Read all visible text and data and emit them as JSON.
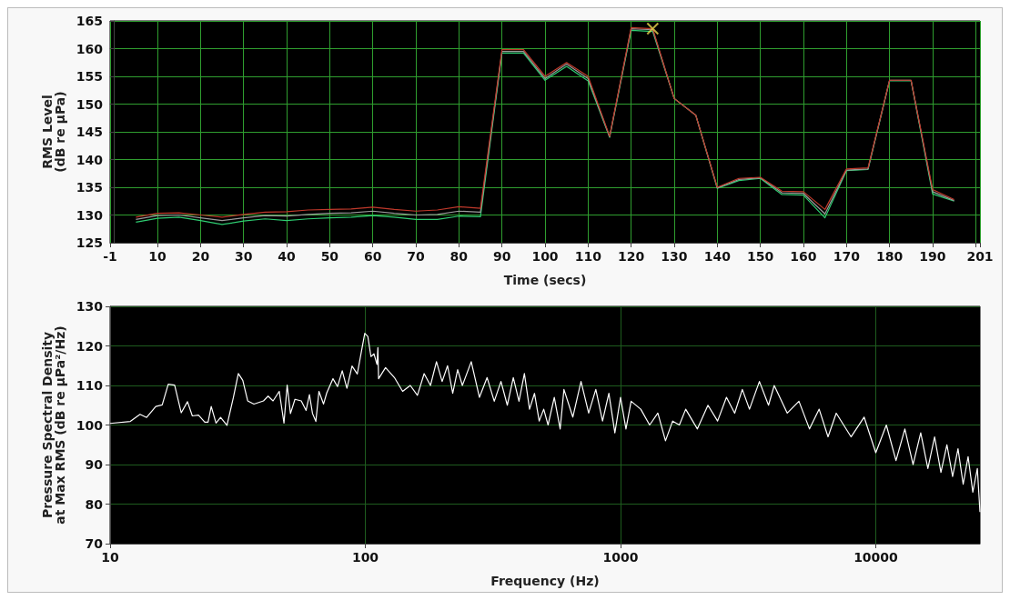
{
  "chart_data": [
    {
      "type": "line",
      "xlabel": "Time (secs)",
      "ylabel": "RMS Level\n(dB re µPa)",
      "x": [
        5,
        10,
        15,
        20,
        25,
        30,
        35,
        40,
        45,
        50,
        55,
        60,
        65,
        70,
        75,
        80,
        85,
        90,
        95,
        100,
        105,
        110,
        115,
        120,
        125,
        130,
        135,
        140,
        145,
        150,
        155,
        160,
        165,
        170,
        175,
        180,
        185,
        190,
        195
      ],
      "xlim": [
        -1,
        201
      ],
      "xticks": [
        -1,
        10,
        20,
        30,
        40,
        50,
        60,
        70,
        80,
        90,
        100,
        110,
        120,
        130,
        140,
        150,
        160,
        170,
        180,
        190,
        {
          "value": 200,
          "label": null
        },
        201
      ],
      "ylim": [
        125,
        165
      ],
      "yticks": [
        125,
        130,
        135,
        140,
        145,
        150,
        155,
        160,
        165
      ],
      "grid": true,
      "marker": "none",
      "series": [
        {
          "color": "#c0392b",
          "values": [
            129.6,
            130.3,
            130.4,
            130.0,
            129.6,
            130.1,
            130.5,
            130.6,
            130.9,
            131.0,
            131.1,
            131.4,
            131.0,
            130.7,
            130.9,
            131.5,
            131.2,
            159.8,
            159.8,
            155.0,
            157.5,
            155.0,
            144.2,
            163.8,
            163.6,
            151.0,
            148.0,
            135.0,
            136.6,
            136.8,
            134.3,
            134.2,
            131.0,
            138.3,
            138.5,
            154.3,
            154.3,
            134.6,
            132.8
          ]
        },
        {
          "color": "#9a9a9a",
          "values": [
            129.2,
            129.9,
            130.0,
            129.5,
            129.0,
            129.5,
            129.9,
            129.8,
            130.1,
            130.3,
            130.4,
            130.7,
            130.3,
            130.0,
            130.1,
            130.7,
            130.5,
            159.5,
            159.5,
            154.6,
            157.2,
            154.6,
            144.1,
            163.6,
            163.4,
            151.0,
            148.0,
            134.9,
            136.4,
            136.7,
            134.0,
            133.9,
            130.2,
            138.1,
            138.3,
            154.3,
            154.3,
            134.2,
            132.6
          ]
        },
        {
          "color": "#2ecc71",
          "values": [
            128.7,
            129.4,
            129.6,
            129.0,
            128.3,
            128.9,
            129.3,
            129.0,
            129.3,
            129.5,
            129.6,
            129.9,
            129.6,
            129.2,
            129.2,
            129.8,
            129.7,
            159.2,
            159.2,
            154.3,
            156.8,
            154.2,
            144.0,
            163.3,
            163.1,
            151.0,
            148.0,
            134.8,
            136.2,
            136.6,
            133.7,
            133.6,
            129.5,
            138.0,
            138.2,
            154.2,
            154.2,
            133.8,
            132.5
          ]
        },
        {
          "type": "scatter",
          "marker": "cross",
          "color": "#e8d44d",
          "x": [
            125
          ],
          "values": [
            163.6
          ]
        }
      ]
    },
    {
      "type": "line",
      "xlabel": "Frequency (Hz)",
      "ylabel": "Pressure Spectral Density\nat Max RMS (dB re µPa²/Hz)",
      "log": "x",
      "xlim": [
        10,
        25600
      ],
      "xticks": [
        10,
        100,
        1000,
        10000
      ],
      "ylim": [
        70,
        130
      ],
      "yticks": [
        70,
        80,
        90,
        100,
        110,
        120,
        130
      ],
      "grid": true,
      "marker": "none",
      "x": [
        10,
        12,
        13.1,
        13.9,
        15.1,
        16,
        16.9,
        17.9,
        19,
        20.1,
        21,
        22.2,
        23.5,
        24.2,
        24.9,
        26,
        27.1,
        28.7,
        30.4,
        31.8,
        33.1,
        34.6,
        36.6,
        38.2,
        39.9,
        41.6,
        43.5,
        46,
        48,
        49.4,
        50.9,
        53,
        56.1,
        58.6,
        60.4,
        62.1,
        64,
        65.8,
        68.6,
        70.6,
        74.7,
        77.8,
        81.2,
        84.7,
        88.7,
        93,
        99.5,
        102.3,
        105.2,
        108.1,
        111.1,
        112,
        112.7,
        120,
        130,
        140,
        150,
        160,
        170,
        180,
        190,
        200,
        210,
        220,
        230,
        240,
        260,
        280,
        300,
        320,
        340,
        360,
        380,
        400,
        420,
        440,
        460,
        480,
        500,
        520,
        550,
        580,
        600,
        650,
        700,
        750,
        800,
        850,
        900,
        950,
        1000,
        1050,
        1100,
        1200,
        1300,
        1400,
        1500,
        1600,
        1700,
        1800,
        2000,
        2200,
        2400,
        2600,
        2800,
        3000,
        3200,
        3500,
        3800,
        4000,
        4500,
        5000,
        5500,
        6000,
        6500,
        7000,
        8000,
        9000,
        10000,
        11000,
        12000,
        13000,
        14000,
        15000,
        16000,
        17000,
        18000,
        19000,
        20000,
        21000,
        22000,
        23000,
        24000,
        25000,
        25600
      ],
      "series": [
        {
          "color": "#ffffff",
          "values": [
            100.4,
            100.9,
            102.7,
            101.9,
            104.7,
            105.1,
            110.3,
            110.1,
            103.1,
            105.9,
            102.3,
            102.5,
            100.7,
            100.7,
            104.7,
            100.5,
            101.9,
            99.9,
            106.9,
            113.0,
            111.3,
            106.1,
            105.3,
            105.7,
            106.1,
            107.3,
            106.1,
            108.5,
            100.5,
            110.1,
            102.9,
            106.5,
            106.1,
            103.7,
            107.7,
            102.9,
            100.9,
            108.5,
            105.3,
            108.1,
            111.7,
            109.7,
            113.7,
            109.3,
            114.9,
            112.9,
            123.2,
            122.4,
            117.3,
            118.0,
            115.3,
            119.6,
            111.7,
            114.5,
            112,
            108.5,
            110,
            107.5,
            113,
            110,
            116,
            111,
            115,
            108,
            114,
            110,
            116,
            107,
            112,
            106,
            111,
            105,
            112,
            106,
            113,
            104,
            108,
            101,
            104,
            100,
            107,
            99,
            109,
            102,
            111,
            103,
            109,
            101,
            108,
            98,
            107,
            99,
            106,
            104,
            100,
            103,
            96,
            101,
            100,
            104,
            99,
            105,
            101,
            107,
            103,
            109,
            104,
            111,
            105,
            110,
            103,
            106,
            99,
            104,
            97,
            103,
            97,
            102,
            93,
            100,
            91,
            99,
            90,
            98,
            89,
            97,
            88,
            95,
            87,
            94,
            85,
            92,
            83,
            89,
            78
          ]
        }
      ]
    }
  ]
}
